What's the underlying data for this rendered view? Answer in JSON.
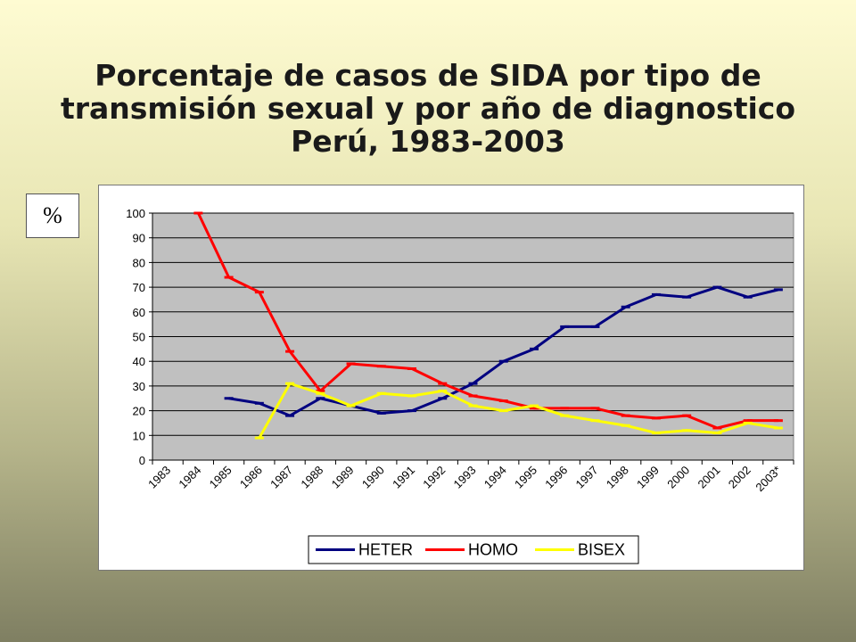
{
  "slide": {
    "title_lines": [
      "Porcentaje de casos de SIDA por tipo de",
      "transmisión sexual y por año de diagnostico",
      "Perú, 1983-2003"
    ],
    "unit_label": "%"
  },
  "colors": {
    "plot_bg": "#c0c0c0",
    "heter": "#000080",
    "homo": "#ff0000",
    "bisex": "#ffff00"
  },
  "chart_data": {
    "type": "line",
    "title": "Porcentaje de casos de SIDA por tipo de transmisión sexual y por año de diagnostico Perú, 1983-2003",
    "ylabel": "%",
    "ylim": [
      0,
      100
    ],
    "yticks": [
      0,
      10,
      20,
      30,
      40,
      50,
      60,
      70,
      80,
      90,
      100
    ],
    "grid": true,
    "legend_position": "bottom",
    "categories": [
      "1983",
      "1984",
      "1985",
      "1986",
      "1987",
      "1988",
      "1989",
      "1990",
      "1991",
      "1992",
      "1993",
      "1994",
      "1995",
      "1996",
      "1997",
      "1998",
      "1999",
      "2000",
      "2001",
      "2002",
      "2003*"
    ],
    "series": [
      {
        "name": "HETER",
        "color": "#000080",
        "values": [
          null,
          null,
          25,
          23,
          18,
          25,
          22,
          19,
          20,
          25,
          31,
          40,
          45,
          54,
          54,
          62,
          67,
          66,
          70,
          66,
          69
        ]
      },
      {
        "name": "HOMO",
        "color": "#ff0000",
        "values": [
          null,
          100,
          74,
          68,
          44,
          28,
          39,
          38,
          37,
          31,
          26,
          24,
          21,
          21,
          21,
          18,
          17,
          18,
          13,
          16,
          16
        ]
      },
      {
        "name": "BISEX",
        "color": "#ffff00",
        "values": [
          null,
          null,
          null,
          9,
          31,
          27,
          22,
          27,
          26,
          28,
          22,
          20,
          22,
          18,
          16,
          14,
          11,
          12,
          11,
          15,
          13
        ]
      }
    ]
  }
}
